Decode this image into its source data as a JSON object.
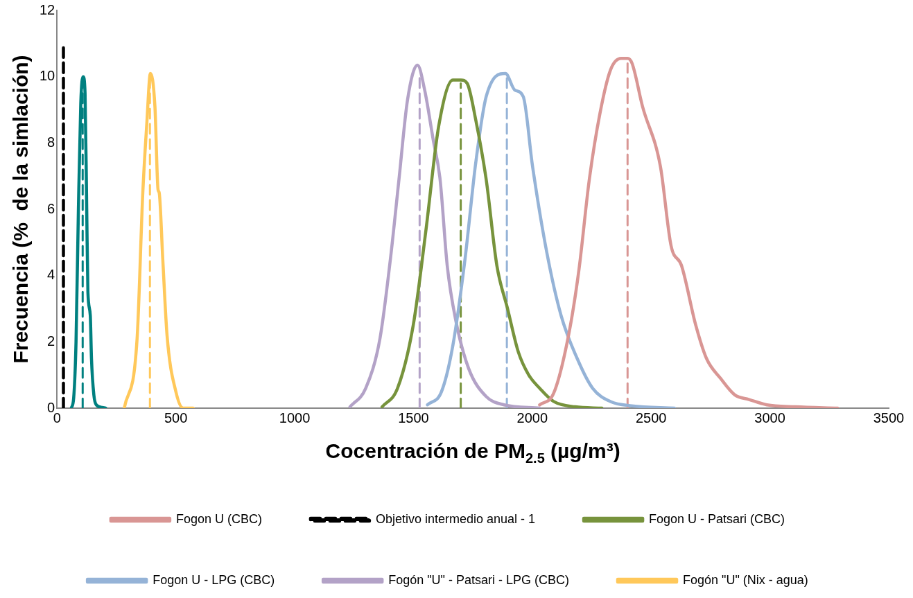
{
  "chart_data": {
    "type": "line",
    "xlabel": "Cocentración de PM$_{2.5}$ (µg/m³)",
    "ylabel": "Frecuencia (%  de la simlación)",
    "xlim": [
      0,
      3500
    ],
    "xticks": [
      0,
      500,
      1000,
      1500,
      2000,
      2500,
      3000,
      3500
    ],
    "ylim": [
      0,
      12
    ],
    "yticks": [
      0,
      2,
      4,
      6,
      8,
      10,
      12
    ],
    "grid": false,
    "legend": "bottom",
    "marker": "none",
    "series": [
      {
        "name": "Fogon U (CBC)",
        "color": "#d99694",
        "x": [
          2031,
          2090,
          2150,
          2195,
          2240,
          2285,
          2329,
          2374,
          2401,
          2420,
          2464,
          2539,
          2584,
          2628,
          2688,
          2733,
          2792,
          2852,
          2912,
          2987,
          3106,
          3285
        ],
        "values": [
          0.1,
          0.45,
          2.1,
          4.1,
          6.9,
          8.9,
          10.2,
          10.55,
          10.55,
          10.4,
          9.1,
          7.3,
          4.9,
          4.3,
          2.5,
          1.5,
          0.9,
          0.4,
          0.26,
          0.1,
          0.04,
          0
        ]
      },
      {
        "name": "Objetivo intermedio anual - 1",
        "color": "#000000",
        "line_style": "dashed",
        "x": [
          27,
          27
        ],
        "values": [
          0,
          11
        ]
      },
      {
        "name": "Fogon U - Patsari (CBC)",
        "color": "#77933c",
        "x": [
          1368,
          1433,
          1499,
          1553,
          1606,
          1666,
          1700,
          1726,
          1762,
          1806,
          1851,
          1896,
          1941,
          1985,
          2031,
          2090,
          2180,
          2293
        ],
        "values": [
          0.04,
          0.6,
          2.5,
          5.4,
          8.5,
          9.9,
          9.9,
          9.8,
          8.7,
          6.9,
          4.3,
          3.0,
          1.7,
          1.0,
          0.6,
          0.2,
          0.04,
          0
        ]
      },
      {
        "name": "Fogon U - LPG (CBC)",
        "color": "#95b3d7",
        "x": [
          1559,
          1618,
          1666,
          1717,
          1762,
          1806,
          1887,
          1926,
          1962,
          2001,
          2061,
          2121,
          2195,
          2254,
          2329,
          2419,
          2598
        ],
        "values": [
          0.1,
          0.5,
          1.9,
          4.5,
          7.4,
          9.4,
          10.1,
          9.6,
          9.4,
          7.3,
          4.7,
          2.8,
          1.4,
          0.6,
          0.2,
          0.07,
          0
        ]
      },
      {
        "name": "Fogón \"U\" - Patsari - LPG (CBC)",
        "color": "#b3a2c7",
        "x": [
          1233,
          1299,
          1359,
          1403,
          1439,
          1475,
          1517,
          1547,
          1583,
          1612,
          1642,
          1678,
          1732,
          1806,
          1881,
          2031
        ],
        "values": [
          0.04,
          0.6,
          2.1,
          4.5,
          6.9,
          9.3,
          10.35,
          9.6,
          8.1,
          6.9,
          4.3,
          2.65,
          1.2,
          0.35,
          0.1,
          0
        ]
      },
      {
        "name": "Fogón \"U\" (Nix - agua)",
        "color": "#ffc85a",
        "x": [
          283,
          337,
          361,
          378,
          393,
          412,
          425,
          430,
          445,
          463,
          500,
          531,
          573
        ],
        "values": [
          0,
          2.1,
          6.5,
          8.6,
          10.1,
          9.1,
          6.6,
          6.5,
          4.5,
          2.2,
          0.5,
          0,
          0
        ]
      },
      {
        "color": "#008080",
        "x": [
          60,
          70,
          80,
          90,
          100,
          110,
          118,
          125,
          130,
          140,
          145,
          155,
          165,
          190,
          205
        ],
        "values": [
          0,
          0.3,
          2,
          6,
          9.2,
          10,
          9.5,
          6,
          3.5,
          2.8,
          1.5,
          0.4,
          0.1,
          0.02,
          0
        ]
      },
      {
        "color": "#d99694",
        "line_style": "dashed",
        "x": [
          2401,
          2401
        ],
        "values": [
          0,
          10.4
        ]
      },
      {
        "color": "#77933c",
        "line_style": "dashed",
        "x": [
          1699,
          1699
        ],
        "values": [
          0,
          9.8
        ]
      },
      {
        "color": "#95b3d7",
        "line_style": "dashed",
        "x": [
          1893,
          1893
        ],
        "values": [
          0,
          10
        ]
      },
      {
        "color": "#b3a2c7",
        "line_style": "dashed",
        "x": [
          1526,
          1526
        ],
        "values": [
          0,
          10
        ]
      },
      {
        "color": "#ffc85a",
        "line_style": "dashed",
        "x": [
          391,
          391
        ],
        "values": [
          0,
          10
        ]
      },
      {
        "color": "#008080",
        "line_style": "dashed",
        "x": [
          108,
          108
        ],
        "values": [
          0,
          9.8
        ]
      }
    ]
  }
}
